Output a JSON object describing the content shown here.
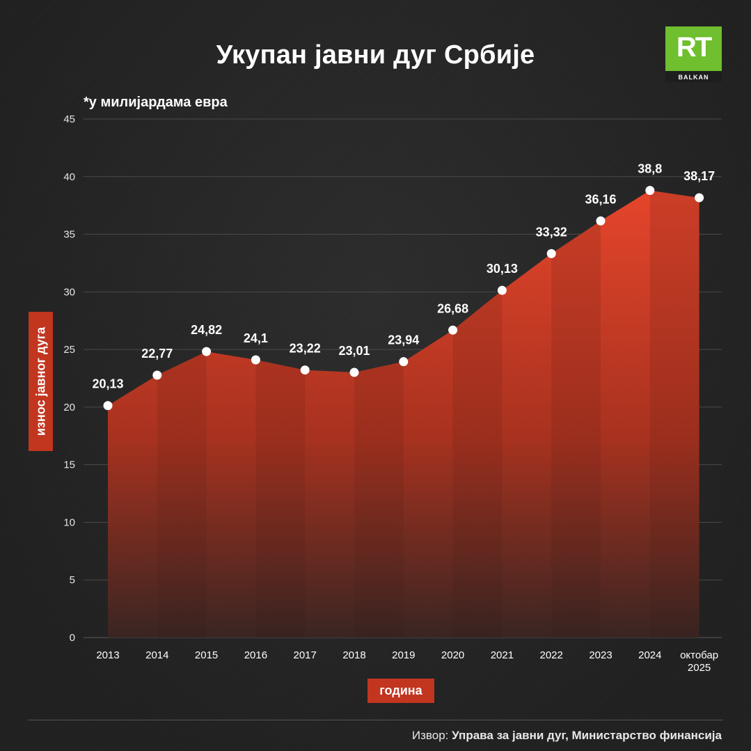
{
  "header": {
    "title": "Укупан јавни дуг Србије",
    "logo_text": "RT",
    "logo_sub": "BALKAN"
  },
  "unit_note": "*у милијардама евра",
  "source": {
    "prefix": "Извор:",
    "text": "Управа за јавни дуг, Министарство финансија"
  },
  "colors": {
    "background": "#242424",
    "area_top": "#e0432a",
    "area_bottom": "#3a2522",
    "badge": "#c2351f",
    "logo_green": "#6fbf2e"
  },
  "chart_data": {
    "type": "area",
    "categories": [
      "2013",
      "2014",
      "2015",
      "2016",
      "2017",
      "2018",
      "2019",
      "2020",
      "2021",
      "2022",
      "2023",
      "2024",
      "октобар 2025"
    ],
    "category_lines": [
      [
        "2013"
      ],
      [
        "2014"
      ],
      [
        "2015"
      ],
      [
        "2016"
      ],
      [
        "2017"
      ],
      [
        "2018"
      ],
      [
        "2019"
      ],
      [
        "2020"
      ],
      [
        "2021"
      ],
      [
        "2022"
      ],
      [
        "2023"
      ],
      [
        "2024"
      ],
      [
        "октобар",
        "2025"
      ]
    ],
    "values": [
      20.13,
      22.77,
      24.82,
      24.1,
      23.22,
      23.01,
      23.94,
      26.68,
      30.13,
      33.32,
      36.16,
      38.8,
      38.17
    ],
    "value_labels": [
      "20,13",
      "22,77",
      "24,82",
      "24,1",
      "23,22",
      "23,01",
      "23,94",
      "26,68",
      "30,13",
      "33,32",
      "36,16",
      "38,8",
      "38,17"
    ],
    "ylabel": "износ јавног дуга",
    "xlabel": "година",
    "ylim": [
      0,
      45
    ],
    "yticks": [
      0,
      5,
      10,
      15,
      20,
      25,
      30,
      35,
      40,
      45
    ],
    "grid": true,
    "legend": "none"
  }
}
